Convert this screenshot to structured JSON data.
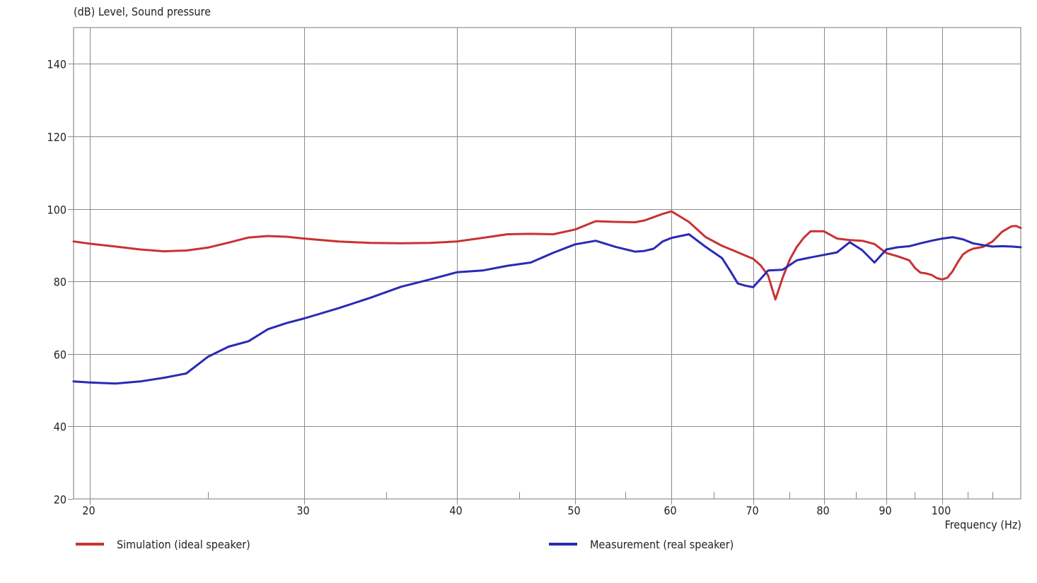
{
  "chart_data": {
    "type": "line",
    "ylabel": "(dB)  Level, Sound pressure",
    "xlabel": "Frequency  (Hz)",
    "x_scale": "log",
    "xlim": [
      19.4,
      116
    ],
    "ylim": [
      20,
      150
    ],
    "x_ticks": [
      20,
      30,
      40,
      50,
      60,
      70,
      80,
      90,
      100
    ],
    "x_minor_ticks": [
      25,
      35,
      45,
      55,
      65,
      75,
      85,
      95,
      105,
      110
    ],
    "y_ticks": [
      20,
      40,
      60,
      80,
      100,
      120,
      140
    ],
    "grid": true,
    "legend_position": "bottom",
    "series": [
      {
        "name": "Simulation (ideal speaker)",
        "color": "#c83232",
        "x": [
          19.4,
          20,
          21,
          22,
          23,
          24,
          25,
          26,
          27,
          28,
          29,
          30,
          32,
          34,
          36,
          38,
          40,
          42,
          44,
          46,
          48,
          50,
          52,
          54,
          56,
          57,
          58,
          59,
          60,
          62,
          64,
          66,
          67,
          68,
          69,
          70,
          71,
          72,
          73,
          74,
          75,
          76,
          77,
          78,
          80,
          82,
          84,
          86,
          88,
          90,
          92,
          94,
          95,
          96,
          97,
          98,
          99,
          100,
          101,
          102,
          103,
          104,
          105,
          106,
          108,
          110,
          112,
          114,
          115,
          116
        ],
        "values": [
          91.0,
          90.4,
          89.6,
          88.8,
          88.3,
          88.5,
          89.3,
          90.7,
          92.1,
          92.5,
          92.3,
          91.8,
          91.0,
          90.6,
          90.5,
          90.6,
          91.0,
          92.0,
          93.0,
          93.1,
          93.0,
          94.3,
          96.6,
          96.4,
          96.3,
          96.8,
          97.7,
          98.6,
          99.3,
          96.4,
          92.2,
          89.8,
          88.9,
          88.0,
          87.1,
          86.2,
          84.4,
          81.6,
          75.0,
          81.0,
          86.0,
          89.5,
          92.0,
          93.8,
          93.8,
          91.8,
          91.4,
          91.2,
          90.3,
          87.8,
          86.9,
          85.8,
          83.7,
          82.4,
          82.2,
          81.8,
          80.9,
          80.5,
          81.0,
          82.8,
          85.3,
          87.4,
          88.4,
          89.0,
          89.5,
          91.0,
          93.7,
          95.2,
          95.3,
          94.7
        ]
      },
      {
        "name": "Measurement (real speaker)",
        "color": "#2a2ab4",
        "x": [
          19.4,
          20,
          21,
          22,
          23,
          24,
          25,
          26,
          27,
          28,
          29,
          30,
          32,
          34,
          36,
          38,
          40,
          42,
          44,
          46,
          48,
          50,
          52,
          54,
          56,
          57,
          58,
          59,
          60,
          62,
          64,
          66,
          67,
          68,
          69,
          70,
          72,
          74,
          76,
          78,
          80,
          82,
          84,
          86,
          88,
          90,
          92,
          94,
          96,
          98,
          100,
          102,
          104,
          106,
          108,
          110,
          112,
          114,
          116
        ],
        "values": [
          52.4,
          52.1,
          51.8,
          52.4,
          53.4,
          54.6,
          59.2,
          62.0,
          63.5,
          66.8,
          68.5,
          69.8,
          72.6,
          75.5,
          78.5,
          80.5,
          82.5,
          83.0,
          84.3,
          85.2,
          87.9,
          90.2,
          91.2,
          89.5,
          88.2,
          88.4,
          89.0,
          91.0,
          92.0,
          93.0,
          89.5,
          86.4,
          83.0,
          79.4,
          78.8,
          78.4,
          83.0,
          83.2,
          85.8,
          86.6,
          87.3,
          88.0,
          90.8,
          88.6,
          85.2,
          88.8,
          89.4,
          89.7,
          90.5,
          91.2,
          91.8,
          92.2,
          91.6,
          90.5,
          90.0,
          89.6,
          89.7,
          89.6,
          89.4
        ]
      }
    ]
  }
}
